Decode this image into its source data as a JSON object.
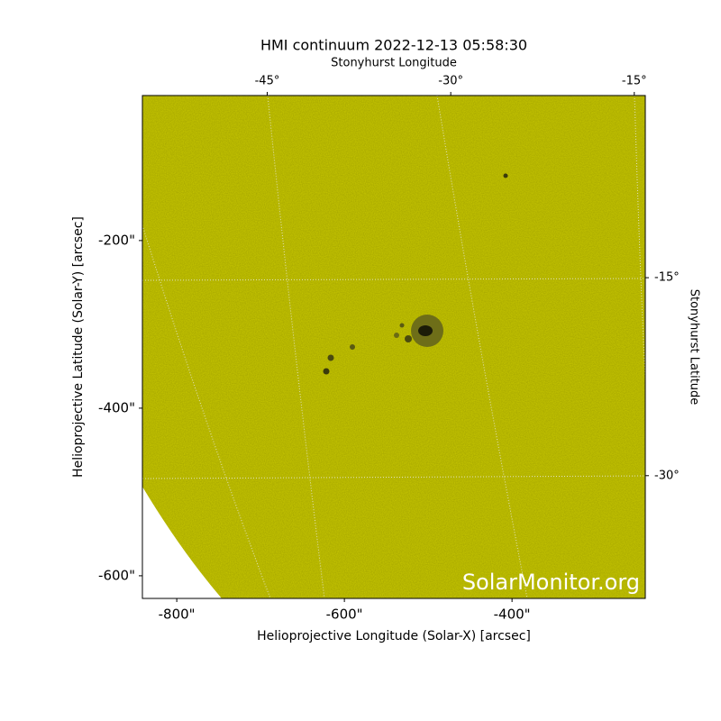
{
  "chart_data": {
    "type": "image",
    "title": "HMI continuum 2022-12-13 05:58:30",
    "xlabel": "Helioprojective Longitude (Solar-X) [arcsec]",
    "ylabel": "Helioprojective Latitude (Solar-Y) [arcsec]",
    "x2label": "Stonyhurst Longitude",
    "y2label": "Stonyhurst Latitude",
    "watermark": "SolarMonitor.org",
    "color": "#c8c800",
    "xlim": [
      -841,
      -241
    ],
    "ylim": [
      -627,
      -27
    ],
    "xticks": [
      {
        "value": -800,
        "label": "-800\""
      },
      {
        "value": -600,
        "label": "-600\""
      },
      {
        "value": -400,
        "label": "-400\""
      }
    ],
    "yticks": [
      {
        "value": -200,
        "label": "-200\""
      },
      {
        "value": -400,
        "label": "-400\""
      },
      {
        "value": -600,
        "label": "-600\""
      }
    ],
    "x2lim": [
      -55.2,
      -14.1
    ],
    "x2ticks": [
      {
        "value": -45,
        "label": "-45°"
      },
      {
        "value": -30,
        "label": "-30°"
      },
      {
        "value": -15,
        "label": "-15°"
      }
    ],
    "y2lim": [
      -39.3,
      -1.2
    ],
    "y2ticks": [
      {
        "value": -15,
        "label": "-15°"
      },
      {
        "value": -30,
        "label": "-30°"
      }
    ]
  }
}
